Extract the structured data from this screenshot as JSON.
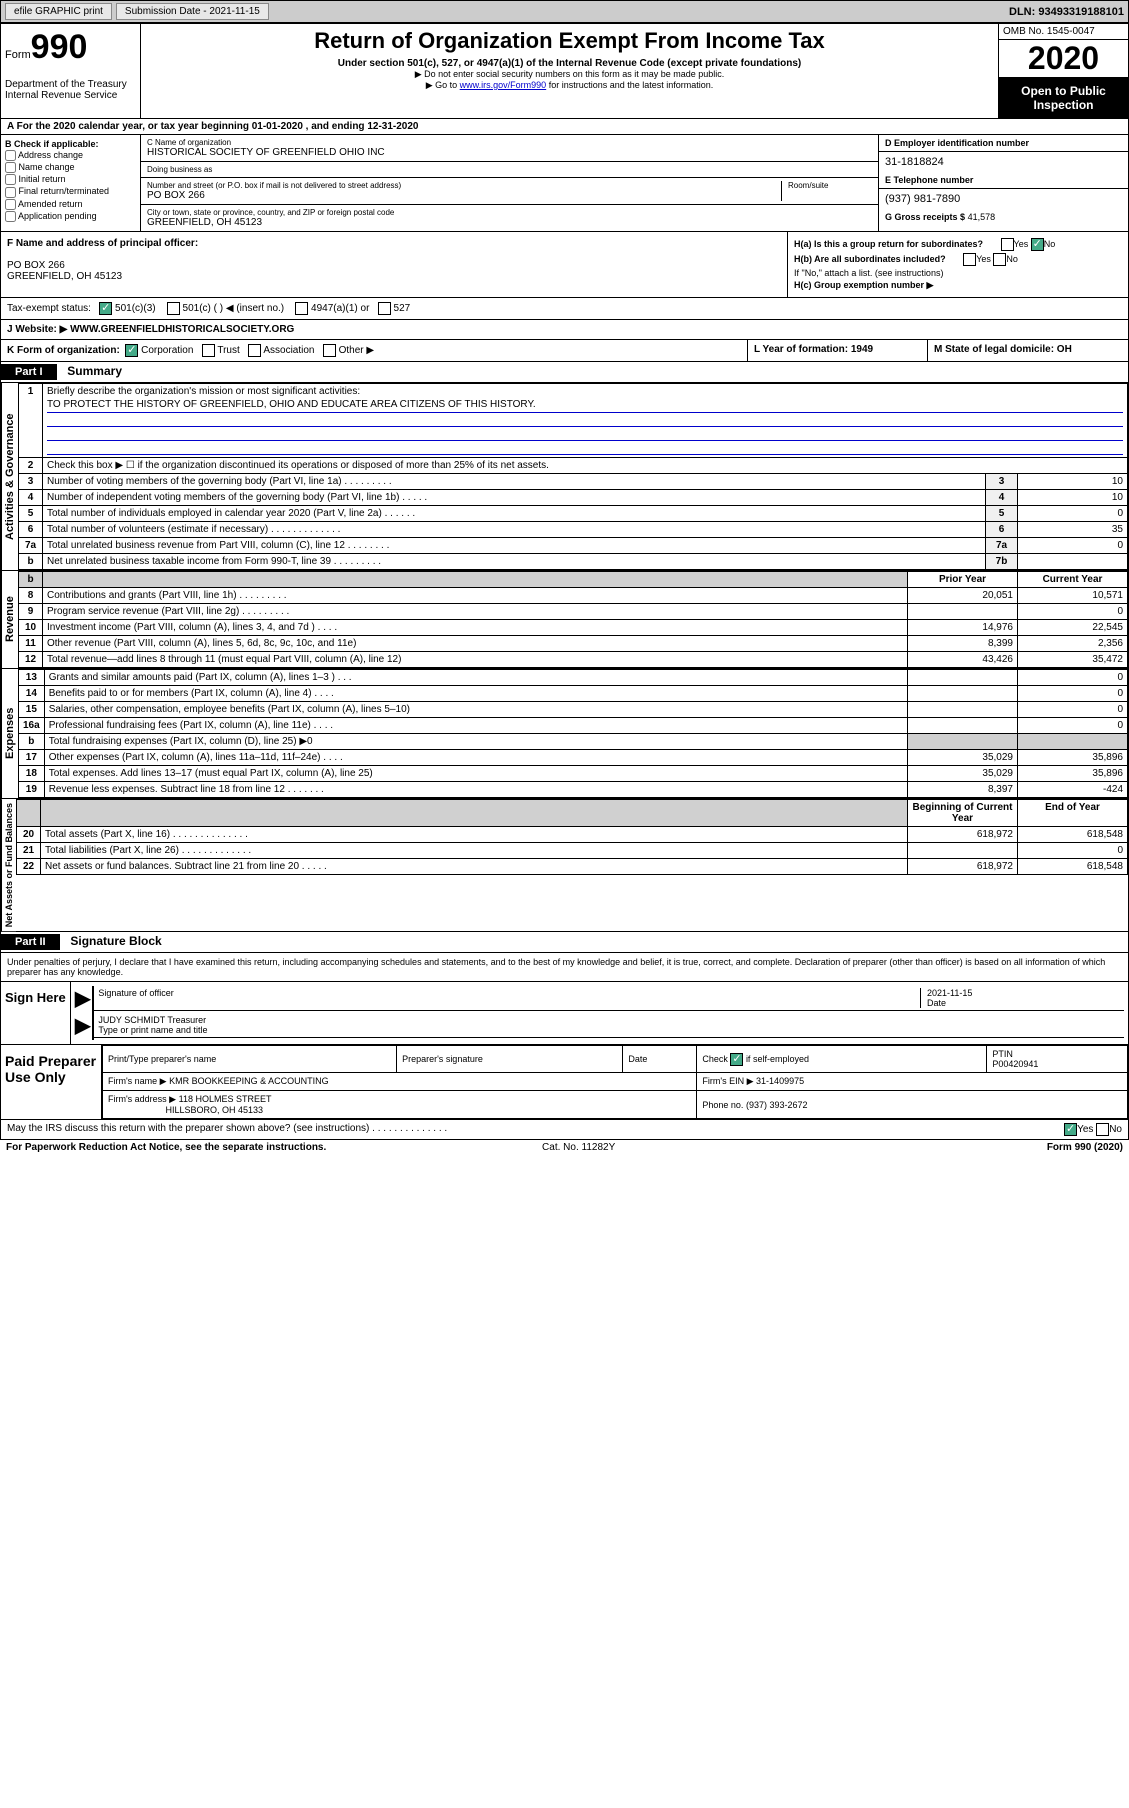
{
  "topbar": {
    "efile": "efile GRAPHIC print",
    "sub_label": "Submission Date",
    "sub_date": "2021-11-15",
    "dln": "DLN: 93493319188101"
  },
  "header": {
    "form_word": "Form",
    "form_num": "990",
    "dept": "Department of the Treasury\nInternal Revenue Service",
    "title": "Return of Organization Exempt From Income Tax",
    "subtitle": "Under section 501(c), 527, or 4947(a)(1) of the Internal Revenue Code (except private foundations)",
    "note1": "▶ Do not enter social security numbers on this form as it may be made public.",
    "note2_pre": "▶ Go to ",
    "note2_link": "www.irs.gov/Form990",
    "note2_post": " for instructions and the latest information.",
    "omb": "OMB No. 1545-0047",
    "year": "2020",
    "inspect": "Open to Public Inspection"
  },
  "row_a": "A For the 2020 calendar year, or tax year beginning 01-01-2020    , and ending 12-31-2020",
  "sec_b": {
    "hdr": "B Check if applicable:",
    "opts": [
      "Address change",
      "Name change",
      "Initial return",
      "Final return/terminated",
      "Amended return",
      "Application pending"
    ]
  },
  "sec_c": {
    "name_lbl": "C Name of organization",
    "name": "HISTORICAL SOCIETY OF GREENFIELD OHIO INC",
    "dba_lbl": "Doing business as",
    "dba": "",
    "addr_lbl": "Number and street (or P.O. box if mail is not delivered to street address)",
    "addr": "PO BOX 266",
    "room_lbl": "Room/suite",
    "city_lbl": "City or town, state or province, country, and ZIP or foreign postal code",
    "city": "GREENFIELD, OH  45123"
  },
  "sec_d": {
    "ein_lbl": "D Employer identification number",
    "ein": "31-1818824",
    "tel_lbl": "E Telephone number",
    "tel": "(937) 981-7890",
    "gross_lbl": "G Gross receipts $",
    "gross": "41,578"
  },
  "sec_f": {
    "lbl": "F Name and address of principal officer:",
    "addr1": "PO BOX 266",
    "addr2": "GREENFIELD, OH  45123"
  },
  "sec_h": {
    "a": "H(a)  Is this a group return for subordinates?",
    "b": "H(b)  Are all subordinates included?",
    "b_note": "If \"No,\" attach a list. (see instructions)",
    "c": "H(c)  Group exemption number ▶"
  },
  "tax_status": {
    "lbl": "Tax-exempt status:",
    "o1": "501(c)(3)",
    "o2": "501(c) (  ) ◀ (insert no.)",
    "o3": "4947(a)(1) or",
    "o4": "527"
  },
  "row_j": "J  Website: ▶   WWW.GREENFIELDHISTORICALSOCIETY.ORG",
  "row_k": {
    "k1_lbl": "K Form of organization:",
    "k1_opts": [
      "Corporation",
      "Trust",
      "Association",
      "Other ▶"
    ],
    "k2": "L Year of formation: 1949",
    "k3": "M State of legal domicile: OH"
  },
  "part1": {
    "hdr": "Part I",
    "title": "Summary",
    "side1": "Activities & Governance",
    "side2": "Revenue",
    "side3": "Expenses",
    "side4": "Net Assets or Fund Balances",
    "q1": "Briefly describe the organization's mission or most significant activities:",
    "mission": "TO PROTECT THE HISTORY OF GREENFIELD, OHIO AND EDUCATE AREA CITIZENS OF THIS HISTORY.",
    "q2": "Check this box ▶ ☐  if the organization discontinued its operations or disposed of more than 25% of its net assets.",
    "rows_gov": [
      {
        "n": "3",
        "d": "Number of voting members of the governing body (Part VI, line 1a)  .  .  .  .  .  .  .  .  .",
        "b": "3",
        "v": "10"
      },
      {
        "n": "4",
        "d": "Number of independent voting members of the governing body (Part VI, line 1b)  .  .  .  .  .",
        "b": "4",
        "v": "10"
      },
      {
        "n": "5",
        "d": "Total number of individuals employed in calendar year 2020 (Part V, line 2a)  .  .  .  .  .  .",
        "b": "5",
        "v": "0"
      },
      {
        "n": "6",
        "d": "Total number of volunteers (estimate if necessary)   .  .  .  .  .  .  .  .  .  .  .  .  .",
        "b": "6",
        "v": "35"
      },
      {
        "n": "7a",
        "d": "Total unrelated business revenue from Part VIII, column (C), line 12   .  .  .  .  .  .  .  .",
        "b": "7a",
        "v": "0"
      },
      {
        "n": "b",
        "d": "Net unrelated business taxable income from Form 990-T, line 39  .  .  .  .  .  .  .  .  .",
        "b": "7b",
        "v": ""
      }
    ],
    "hdr_prior": "Prior Year",
    "hdr_curr": "Current Year",
    "rows_rev": [
      {
        "n": "8",
        "d": "Contributions and grants (Part VIII, line 1h)   .  .  .  .  .  .  .  .  .",
        "p": "20,051",
        "c": "10,571"
      },
      {
        "n": "9",
        "d": "Program service revenue (Part VIII, line 2g)   .  .  .  .  .  .  .  .  .",
        "p": "",
        "c": "0"
      },
      {
        "n": "10",
        "d": "Investment income (Part VIII, column (A), lines 3, 4, and 7d )   .  .  .  .",
        "p": "14,976",
        "c": "22,545"
      },
      {
        "n": "11",
        "d": "Other revenue (Part VIII, column (A), lines 5, 6d, 8c, 9c, 10c, and 11e)",
        "p": "8,399",
        "c": "2,356"
      },
      {
        "n": "12",
        "d": "Total revenue—add lines 8 through 11 (must equal Part VIII, column (A), line 12)",
        "p": "43,426",
        "c": "35,472"
      }
    ],
    "rows_exp": [
      {
        "n": "13",
        "d": "Grants and similar amounts paid (Part IX, column (A), lines 1–3 )   .  .  .",
        "p": "",
        "c": "0"
      },
      {
        "n": "14",
        "d": "Benefits paid to or for members (Part IX, column (A), line 4)   .  .  .  .",
        "p": "",
        "c": "0"
      },
      {
        "n": "15",
        "d": "Salaries, other compensation, employee benefits (Part IX, column (A), lines 5–10)",
        "p": "",
        "c": "0"
      },
      {
        "n": "16a",
        "d": "Professional fundraising fees (Part IX, column (A), line 11e)   .  .  .  .",
        "p": "",
        "c": "0"
      },
      {
        "n": "b",
        "d": "Total fundraising expenses (Part IX, column (D), line 25) ▶0",
        "p": "shade",
        "c": "shade"
      },
      {
        "n": "17",
        "d": "Other expenses (Part IX, column (A), lines 11a–11d, 11f–24e)   .  .  .  .",
        "p": "35,029",
        "c": "35,896"
      },
      {
        "n": "18",
        "d": "Total expenses. Add lines 13–17 (must equal Part IX, column (A), line 25)",
        "p": "35,029",
        "c": "35,896"
      },
      {
        "n": "19",
        "d": "Revenue less expenses. Subtract line 18 from line 12  .  .  .  .  .  .  .",
        "p": "8,397",
        "c": "-424"
      }
    ],
    "hdr_beg": "Beginning of Current Year",
    "hdr_end": "End of Year",
    "rows_net": [
      {
        "n": "20",
        "d": "Total assets (Part X, line 16)  .  .  .  .  .  .  .  .  .  .  .  .  .  .",
        "p": "618,972",
        "c": "618,548"
      },
      {
        "n": "21",
        "d": "Total liabilities (Part X, line 26)  .  .  .  .  .  .  .  .  .  .  .  .  .",
        "p": "",
        "c": "0"
      },
      {
        "n": "22",
        "d": "Net assets or fund balances. Subtract line 21 from line 20  .  .  .  .  .",
        "p": "618,972",
        "c": "618,548"
      }
    ]
  },
  "part2": {
    "hdr": "Part II",
    "title": "Signature Block",
    "decl": "Under penalties of perjury, I declare that I have examined this return, including accompanying schedules and statements, and to the best of my knowledge and belief, it is true, correct, and complete. Declaration of preparer (other than officer) is based on all information of which preparer has any knowledge."
  },
  "sign": {
    "here": "Sign Here",
    "sig_lbl": "Signature of officer",
    "date_lbl": "Date",
    "date": "2021-11-15",
    "name": "JUDY SCHMIDT  Treasurer",
    "name_lbl": "Type or print name and title"
  },
  "prep": {
    "label": "Paid Preparer Use Only",
    "h1": "Print/Type preparer's name",
    "h2": "Preparer's signature",
    "h3": "Date",
    "h4_pre": "Check",
    "h4_post": "if self-employed",
    "h5": "PTIN",
    "ptin": "P00420941",
    "firm_lbl": "Firm's name    ▶",
    "firm": "KMR BOOKKEEPING & ACCOUNTING",
    "ein_lbl": "Firm's EIN ▶",
    "ein": "31-1409975",
    "addr_lbl": "Firm's address ▶",
    "addr1": "118 HOLMES STREET",
    "addr2": "HILLSBORO, OH  45133",
    "phone_lbl": "Phone no.",
    "phone": "(937) 393-2672"
  },
  "footer": {
    "q": "May the IRS discuss this return with the preparer shown above? (see instructions)   .  .  .  .  .  .  .  .  .  .  .  .  .  .",
    "paperwork": "For Paperwork Reduction Act Notice, see the separate instructions.",
    "cat": "Cat. No. 11282Y",
    "form": "Form 990 (2020)"
  }
}
